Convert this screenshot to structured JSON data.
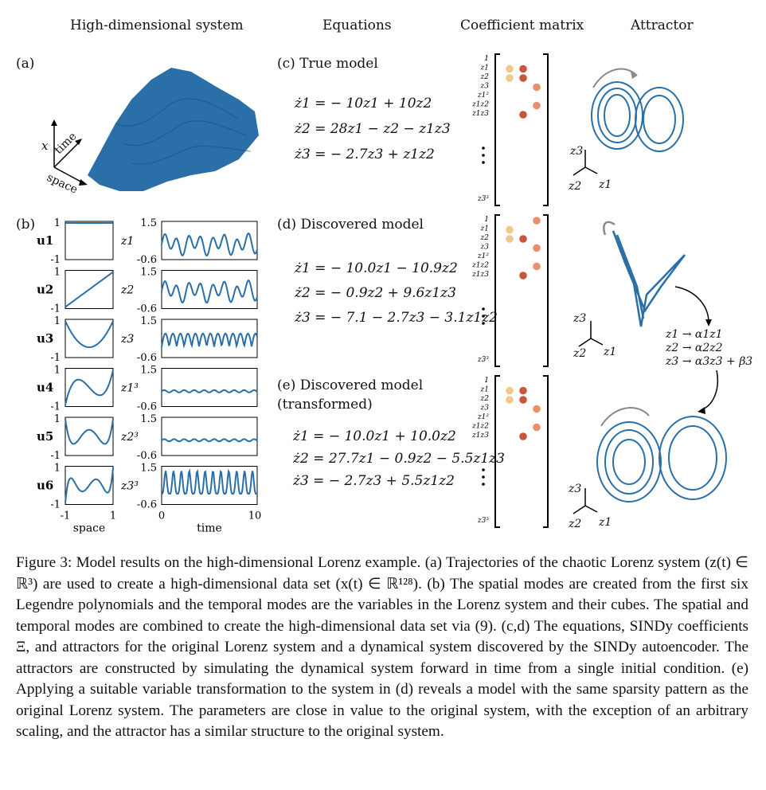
{
  "headers": {
    "high_dim": "High-dimensional system",
    "equations": "Equations",
    "coef": "Coefficient matrix",
    "attractor": "Attractor"
  },
  "panels": {
    "a": "(a)",
    "b": "(b)",
    "c": "(c) True model",
    "d": "(d) Discovered model",
    "e_line1": "(e) Discovered model",
    "e_line2": "(transformed)"
  },
  "axis_labels_3d": {
    "x": "x",
    "time": "time",
    "space": "space"
  },
  "equations": {
    "true": [
      "ż1 = − 10z1 + 10z2",
      "ż2 = 28z1 − z2 − z1z3",
      "ż3 = − 2.7z3 + z1z2"
    ],
    "discovered": [
      "ż1 = − 10.0z1 − 10.9z2",
      "ż2 = − 0.9z2 + 9.6z1z3",
      "ż3 = − 7.1 − 2.7z3 − 3.1z1z2"
    ],
    "transformed": [
      "ż1 = − 10.0z1 + 10.0z2",
      "ż2 = 27.7z1 − 0.9z2 − 5.5z1z3",
      "ż3 = − 2.7z3 + 5.5z1z2"
    ]
  },
  "modes": {
    "spatial_labels": [
      "u1",
      "u2",
      "u3",
      "u4",
      "u5",
      "u6"
    ],
    "temporal_labels": [
      "z1",
      "z2",
      "z3",
      "z1³",
      "z2³",
      "z3³"
    ],
    "spatial_ytick_top": "1",
    "spatial_ytick_bottom": "-1",
    "temporal_ytick_top": "1.5",
    "temporal_ytick_bottom": "-0.6",
    "space_xticks": [
      "-1",
      "1"
    ],
    "time_xticks": [
      "0",
      "10"
    ],
    "space_xlabel": "space",
    "time_xlabel": "time"
  },
  "coef_rows": [
    "1",
    "z1",
    "z2",
    "z3",
    "z1²",
    "z1z2",
    "z1z3",
    "z3³"
  ],
  "coef_colors": {
    "light": "#f0c88a",
    "mid": "#e8906a",
    "dark": "#c8553d"
  },
  "attractor_axes": {
    "z3": "z3",
    "z2": "z2",
    "z1": "z1"
  },
  "transform": [
    "z1 → α1z1",
    "z2 → α2z2",
    "z3 → α3z3 + β3"
  ],
  "caption": "Figure 3: Model results on the high-dimensional Lorenz example. (a) Trajectories of the chaotic Lorenz system (z(t) ∈ ℝ³) are used to create a high-dimensional data set (x(t) ∈ ℝ¹²⁸). (b) The spatial modes are created from the first six Legendre polynomials and the temporal modes are the variables in the Lorenz system and their cubes. The spatial and temporal modes are combined to create the high-dimensional data set via (9). (c,d) The equations, SINDy coefficients Ξ, and attractors for the original Lorenz system and a dynamical system discovered by the SINDy autoencoder. The attractors are constructed by simulating the dynamical system forward in time from a single initial condition. (e) Applying a suitable variable transformation to the system in (d) reveals a model with the same sparsity pattern as the original Lorenz system. The parameters are close in value to the original system, with the exception of an arbitrary scaling, and the attractor has a similar structure to the original system.",
  "colors": {
    "plot_blue": "#2a6fa8"
  }
}
